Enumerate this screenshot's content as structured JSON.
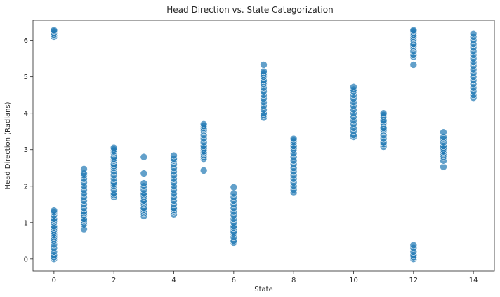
{
  "chart_data": {
    "type": "scatter",
    "title": "Head Direction vs. State Categorization",
    "xlabel": "State",
    "ylabel": "Head Direction (Radians)",
    "xlim": [
      -0.7,
      14.7
    ],
    "ylim": [
      -0.33,
      6.55
    ],
    "xticks": [
      0,
      2,
      4,
      6,
      8,
      10,
      12,
      14
    ],
    "yticks": [
      0,
      1,
      2,
      3,
      4,
      5,
      6
    ],
    "grid": false,
    "legend": "none",
    "marker_color": "#1f77b4",
    "marker_edge_color": "#ffffff",
    "series": [
      {
        "points": [
          {
            "x": 0,
            "y": [
              0.0,
              0.05,
              0.1,
              0.2,
              0.3,
              0.4,
              0.5,
              0.55,
              0.6,
              0.65,
              0.7,
              0.75,
              0.8,
              0.85,
              0.9,
              1.0,
              1.05,
              1.1,
              1.2,
              1.28,
              1.33,
              6.1,
              6.15,
              6.2,
              6.25,
              6.28
            ]
          },
          {
            "x": 1,
            "y": [
              0.82,
              0.95,
              1.0,
              1.05,
              1.1,
              1.2,
              1.25,
              1.3,
              1.4,
              1.5,
              1.6,
              1.7,
              1.8,
              1.9,
              2.0,
              2.1,
              2.2,
              2.3,
              2.35,
              2.47
            ]
          },
          {
            "x": 2,
            "y": [
              1.7,
              1.75,
              1.8,
              1.9,
              2.0,
              2.05,
              2.1,
              2.2,
              2.3,
              2.4,
              2.5,
              2.55,
              2.6,
              2.7,
              2.75,
              2.8,
              2.9,
              2.95,
              3.0,
              3.05
            ]
          },
          {
            "x": 3,
            "y": [
              1.18,
              1.25,
              1.3,
              1.35,
              1.4,
              1.5,
              1.55,
              1.6,
              1.7,
              1.75,
              1.8,
              1.9,
              2.0,
              2.08,
              2.35,
              2.8
            ]
          },
          {
            "x": 4,
            "y": [
              1.22,
              1.3,
              1.35,
              1.4,
              1.5,
              1.6,
              1.7,
              1.8,
              1.9,
              2.0,
              2.1,
              2.2,
              2.3,
              2.4,
              2.5,
              2.6,
              2.7,
              2.75,
              2.84
            ]
          },
          {
            "x": 5,
            "y": [
              2.43,
              2.75,
              2.8,
              2.85,
              2.9,
              2.95,
              3.0,
              3.05,
              3.1,
              3.2,
              3.3,
              3.4,
              3.5,
              3.55,
              3.6,
              3.65,
              3.7
            ]
          },
          {
            "x": 6,
            "y": [
              0.45,
              0.5,
              0.6,
              0.7,
              0.75,
              0.85,
              0.9,
              1.0,
              1.1,
              1.2,
              1.3,
              1.4,
              1.5,
              1.6,
              1.7,
              1.8,
              1.97
            ]
          },
          {
            "x": 7,
            "y": [
              3.88,
              3.95,
              4.0,
              4.1,
              4.2,
              4.3,
              4.4,
              4.5,
              4.6,
              4.7,
              4.8,
              4.85,
              4.9,
              5.0,
              5.05,
              5.1,
              5.15,
              5.33
            ]
          },
          {
            "x": 8,
            "y": [
              1.82,
              1.9,
              2.0,
              2.1,
              2.2,
              2.3,
              2.4,
              2.5,
              2.6,
              2.7,
              2.8,
              2.9,
              3.0,
              3.05,
              3.1,
              3.2,
              3.25,
              3.3
            ]
          },
          {
            "x": 10,
            "y": [
              3.35,
              3.4,
              3.5,
              3.6,
              3.7,
              3.8,
              3.9,
              4.0,
              4.1,
              4.2,
              4.3,
              4.4,
              4.5,
              4.6,
              4.65,
              4.72
            ]
          },
          {
            "x": 11,
            "y": [
              3.08,
              3.15,
              3.2,
              3.3,
              3.4,
              3.5,
              3.55,
              3.6,
              3.7,
              3.75,
              3.8,
              3.9,
              3.95,
              4.0
            ]
          },
          {
            "x": 12,
            "y": [
              0.0,
              0.05,
              0.1,
              0.2,
              0.3,
              0.38,
              5.33,
              5.55,
              5.6,
              5.7,
              5.8,
              5.85,
              5.9,
              6.0,
              6.05,
              6.1,
              6.15,
              6.2,
              6.25,
              6.28
            ]
          },
          {
            "x": 13,
            "y": [
              2.53,
              2.7,
              2.8,
              2.85,
              2.9,
              2.95,
              3.0,
              3.05,
              3.1,
              3.2,
              3.3,
              3.35,
              3.48
            ]
          },
          {
            "x": 14,
            "y": [
              4.42,
              4.5,
              4.6,
              4.7,
              4.8,
              4.9,
              5.0,
              5.1,
              5.2,
              5.3,
              5.4,
              5.5,
              5.6,
              5.7,
              5.8,
              5.9,
              6.0,
              6.1,
              6.18
            ]
          }
        ]
      }
    ]
  }
}
